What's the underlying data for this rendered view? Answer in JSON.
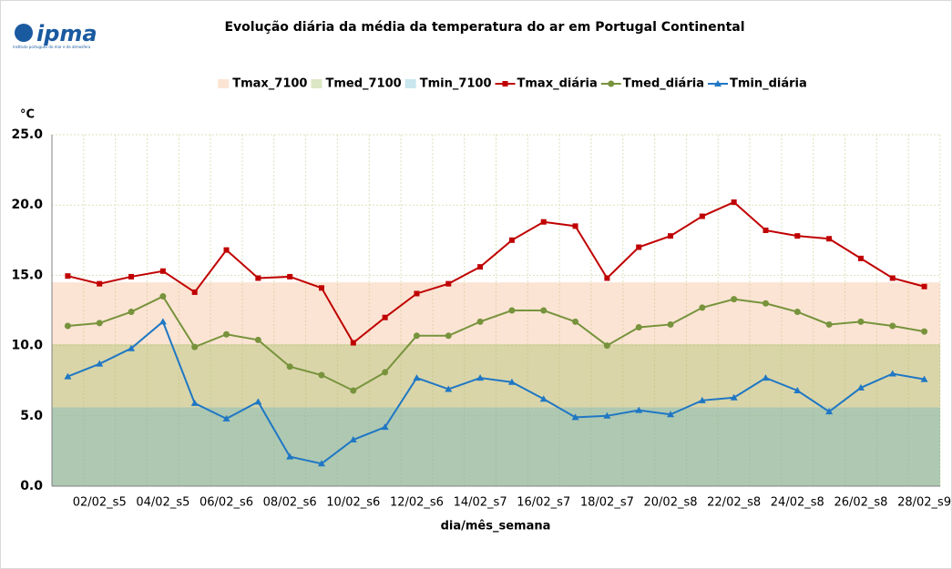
{
  "logo": {
    "name": "ipma",
    "subtitle": "instituto português do mar e da atmosfera"
  },
  "chart_data": {
    "type": "line",
    "title": "Evolução diária da média da temperatura do ar em Portugal Continental",
    "y_label": "°C",
    "x_label": "dia/mês_semana",
    "categories": [
      null,
      "02/02_s5",
      null,
      "04/02_s5",
      null,
      "06/02_s6",
      null,
      "08/02_s6",
      null,
      "10/02_s6",
      null,
      "12/02_s6",
      null,
      "14/02_s7",
      null,
      "16/02_s7",
      null,
      "18/02_s7",
      null,
      "20/02_s8",
      null,
      "22/02_s8",
      null,
      "24/02_s8",
      null,
      "26/02_s8",
      null,
      "28/02_s9"
    ],
    "series": [
      {
        "name": "Tmax_7100",
        "type": "area",
        "color": "#f4b183",
        "opacity": 0.35,
        "values": [
          14.5,
          14.5,
          14.5,
          14.5,
          14.5,
          14.5,
          14.5,
          14.5,
          14.5,
          14.5,
          14.5,
          14.5,
          14.5,
          14.5,
          14.5,
          14.5,
          14.5,
          14.5,
          14.5,
          14.5,
          14.5,
          14.5,
          14.5,
          14.5,
          14.5,
          14.5,
          14.5,
          14.5
        ]
      },
      {
        "name": "Tmed_7100",
        "type": "area",
        "color": "#9bbb59",
        "opacity": 0.35,
        "values": [
          10.1,
          10.1,
          10.1,
          10.1,
          10.1,
          10.1,
          10.1,
          10.1,
          10.1,
          10.1,
          10.1,
          10.1,
          10.1,
          10.1,
          10.1,
          10.1,
          10.1,
          10.1,
          10.1,
          10.1,
          10.1,
          10.1,
          10.1,
          10.1,
          10.1,
          10.1,
          10.1,
          10.1
        ]
      },
      {
        "name": "Tmin_7100",
        "type": "area",
        "color": "#4bacc6",
        "opacity": 0.3,
        "values": [
          5.6,
          5.6,
          5.6,
          5.6,
          5.6,
          5.6,
          5.6,
          5.6,
          5.6,
          5.6,
          5.6,
          5.6,
          5.6,
          5.6,
          5.6,
          5.6,
          5.6,
          5.6,
          5.6,
          5.6,
          5.6,
          5.6,
          5.6,
          5.6,
          5.6,
          5.6,
          5.6,
          5.6
        ]
      },
      {
        "name": "Tmax_diária",
        "type": "line",
        "marker": "square",
        "color": "#c00000",
        "values": [
          14.95,
          14.4,
          14.9,
          15.3,
          13.8,
          16.8,
          14.8,
          14.9,
          14.1,
          10.2,
          12.0,
          13.7,
          14.4,
          15.6,
          17.5,
          18.8,
          18.5,
          14.8,
          17.0,
          17.8,
          19.2,
          20.2,
          18.2,
          17.8,
          17.6,
          16.2,
          14.8,
          14.2
        ]
      },
      {
        "name": "Tmed_diária",
        "type": "line",
        "marker": "circle",
        "color": "#77933c",
        "values": [
          11.4,
          11.6,
          12.4,
          13.5,
          9.9,
          10.8,
          10.4,
          8.5,
          7.9,
          6.8,
          8.1,
          10.7,
          10.7,
          11.7,
          12.5,
          12.5,
          11.7,
          10.0,
          11.3,
          11.5,
          12.7,
          13.3,
          13.0,
          12.4,
          11.5,
          11.7,
          11.4,
          11.0
        ]
      },
      {
        "name": "Tmin_diária",
        "type": "line",
        "marker": "triangle",
        "color": "#1f77c4",
        "values": [
          7.8,
          8.7,
          9.8,
          11.7,
          5.9,
          4.8,
          6.0,
          2.1,
          1.6,
          3.3,
          4.2,
          7.7,
          6.9,
          7.7,
          7.4,
          6.2,
          4.9,
          5.0,
          5.4,
          5.1,
          6.1,
          6.3,
          7.7,
          6.8,
          5.3,
          7.0,
          8.0,
          7.6
        ]
      }
    ],
    "ylim": [
      0,
      25
    ],
    "yticks": [
      {
        "value": 0,
        "label": "0.0"
      },
      {
        "value": 5,
        "label": "5.0"
      },
      {
        "value": 10,
        "label": "10.0"
      },
      {
        "value": 15,
        "label": "15.0"
      },
      {
        "value": 20,
        "label": "20.0"
      },
      {
        "value": 25,
        "label": "25.0"
      }
    ],
    "grid": true,
    "legend": "top"
  }
}
